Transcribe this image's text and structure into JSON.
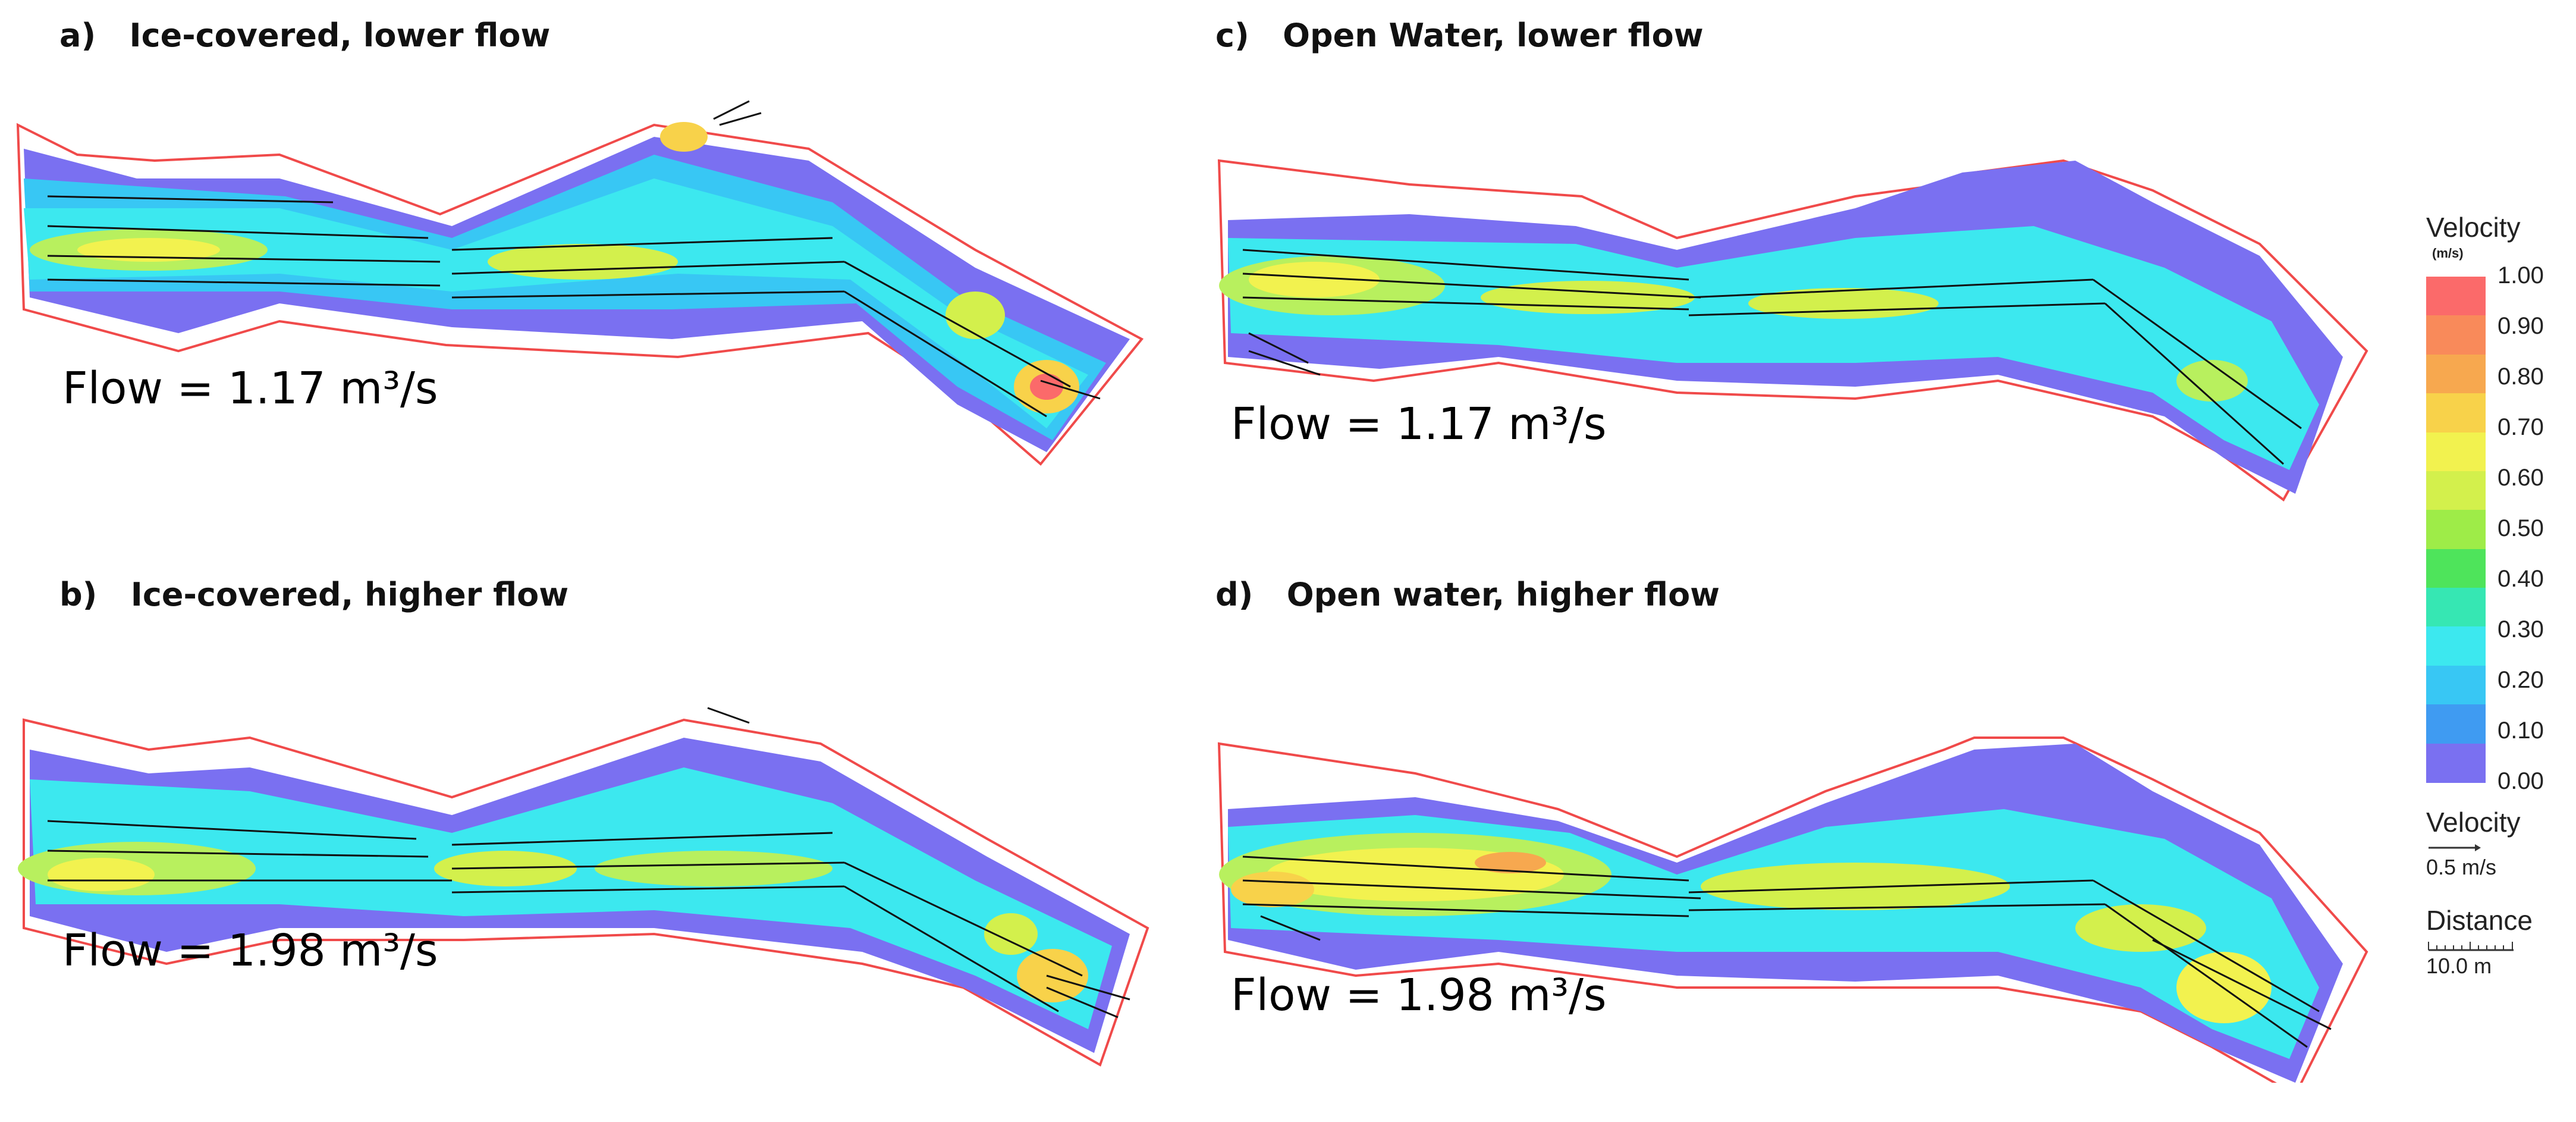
{
  "panels": [
    {
      "title": "a)   Ice-covered, lower flow",
      "flow": "Flow = 1.17 m³/s"
    },
    {
      "title": "b)   Ice-covered, higher flow",
      "flow": "Flow = 1.98 m³/s"
    },
    {
      "title": "c)   Open Water, lower flow",
      "flow": "Flow = 1.17 m³/s"
    },
    {
      "title": "d)   Open water, higher flow",
      "flow": "Flow = 1.98 m³/s"
    }
  ],
  "legend": {
    "velocity_title": "Velocity",
    "velocity_unit": "(m/s)",
    "ticks": [
      "1.00",
      "0.90",
      "0.80",
      "0.70",
      "0.60",
      "0.50",
      "0.40",
      "0.30",
      "0.20",
      "0.10",
      "0.00"
    ],
    "colors": [
      "#fb6a6a",
      "#f98a5a",
      "#f7a84f",
      "#f8d24a",
      "#f2f24f",
      "#d3f04c",
      "#9eec48",
      "#4ee45b",
      "#36e7b3",
      "#3ce8ef",
      "#38c7f4",
      "#3f9bf2",
      "#7a70f1"
    ],
    "vector_title": "Velocity",
    "vector_scale": "0.5 m/s",
    "distance_title": "Distance",
    "distance_scale": "10.0 m"
  },
  "colors": {
    "outline": "#f04a4a",
    "boundary_green": "#33cc33",
    "boundary_blue": "#3366ff",
    "low_velocity": "#7b6ff1",
    "mid_velocity": "#3ce8ef",
    "high_velocity": "#f2f24f",
    "peak_velocity": "#fb6a6a"
  }
}
